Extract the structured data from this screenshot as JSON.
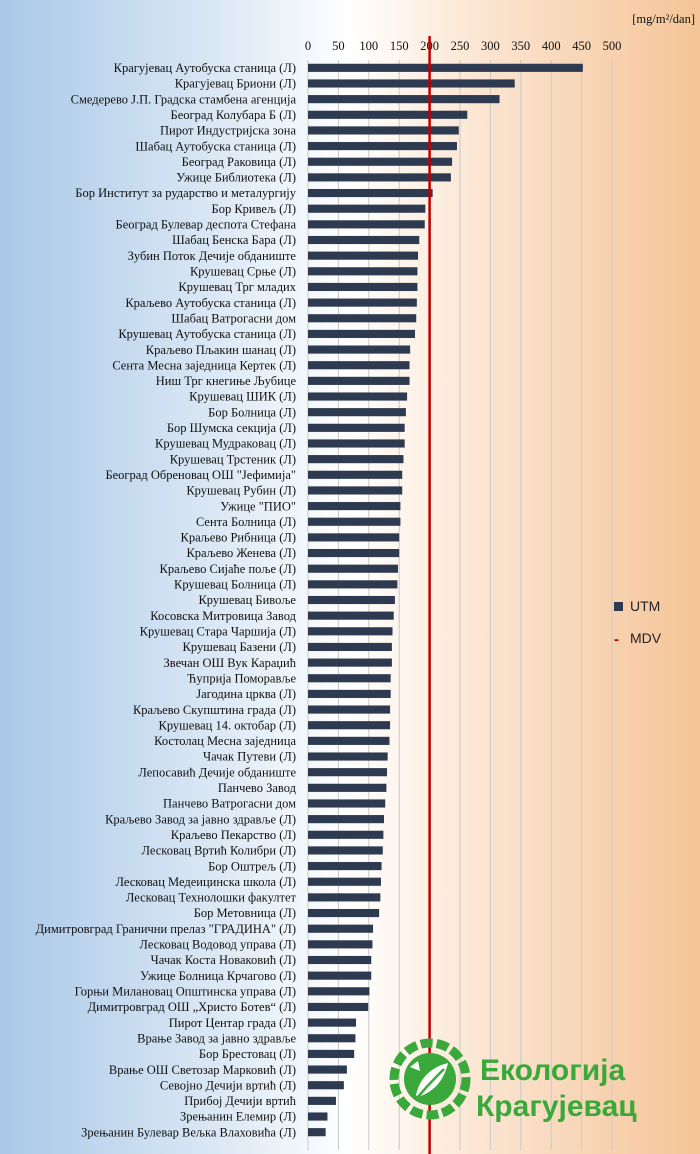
{
  "chart_data": {
    "type": "bar",
    "orientation": "horizontal",
    "unit_label": "[mg/m²/dan]",
    "xlim": [
      0,
      500
    ],
    "x_ticks": [
      0,
      50,
      100,
      150,
      200,
      250,
      300,
      350,
      400,
      450,
      500
    ],
    "reference_line": {
      "name": "MDV",
      "value": 200,
      "color": "#c00000"
    },
    "series": [
      {
        "name": "UTM",
        "color": "#2e3a4f"
      }
    ],
    "legend_position": "right",
    "categories": [
      "Крагујевац Аутобуска станица (Л)",
      "Крагујевац Бриони (Л)",
      "Смедерево Ј.П. Градска стамбена агенција",
      "Београд Колубара Б (Л)",
      "Пирот Индустријска зона",
      "Шабац Аутобуска станица (Л)",
      "Београд Раковица (Л)",
      "Ужице Библиотека (Л)",
      "Бор Институт за рударство и металургију",
      "Бор Кривељ (Л)",
      "Београд Булевар деспота Стефана",
      "Шабац Бенска Бара (Л)",
      "Зубин Поток Дечије обданиште",
      "Крушевац Срње (Л)",
      "Крушевац Трг младих",
      "Краљево Аутобуска станица (Л)",
      "Шабац Ватрогасни дом",
      "Крушевац Аутобуска станица (Л)",
      "Краљево Пљакин шанац (Л)",
      "Сента Месна заједница Кертек (Л)",
      "Ниш Трг кнегиње Љубице",
      "Крушевац ШИК (Л)",
      "Бор Болница (Л)",
      "Бор Шумска секција (Л)",
      "Крушевац Мудраковац (Л)",
      "Крушевац Трстеник (Л)",
      "Београд Обреновац ОШ \"Јефимија\"",
      "Крушевац Рубин (Л)",
      "Ужице \"ПИО\"",
      "Сента Болница (Л)",
      "Краљево Рибница (Л)",
      "Краљево Женева (Л)",
      "Краљево Сијаће поље (Л)",
      "Крушевац Болница (Л)",
      "Крушевац Бивоље",
      "Косовска Митровица Завод",
      "Крушевац Стара Чаршија (Л)",
      "Крушевац Базени (Л)",
      "Звечан ОШ Вук Караџић",
      "Ћуприја Поморавље",
      "Јагодина црква (Л)",
      "Краљево Скупштина града (Л)",
      "Крушевац 14. октобар (Л)",
      "Костолац Месна заједница",
      "Чачак Путеви (Л)",
      "Лепосавић Дечије обданиште",
      "Панчево Завод",
      "Панчево Ватрогасни дом",
      "Краљево Завод за јавно здравље (Л)",
      "Краљево Пекарство (Л)",
      "Лесковац Вртић Колибри (Л)",
      "Бор Оштрељ (Л)",
      "Лесковац Медеицинска школа (Л)",
      "Лесковац Технолошки факултет",
      "Бор Метовница (Л)",
      "Димитровград Гранични прелаз \"ГРАДИНА\" (Л)",
      "Лесковац Водовод управа (Л)",
      "Чачак Коста Новаковић (Л)",
      "Ужице Болница Крчагово (Л)",
      "Горњи Милановац Општинска управа (Л)",
      "Димитровград ОШ „Христо Ботев“ (Л)",
      "Пирот Центар града (Л)",
      "Врање Завод за јавно здравље",
      "Бор Брестовац (Л)",
      "Врање ОШ Светозар Марковић (Л)",
      "Севојно Дечији вртић (Л)",
      "Прибој Дечији вртић",
      "Зрењанин Елемир (Л)",
      "Зрењанин Булевар Вељка Влаховића (Л)"
    ],
    "values": [
      452,
      340,
      315,
      262,
      248,
      245,
      237,
      235,
      205,
      193,
      192,
      183,
      181,
      180,
      180,
      179,
      178,
      176,
      168,
      167,
      167,
      163,
      161,
      159,
      159,
      157,
      155,
      155,
      152,
      152,
      150,
      150,
      148,
      147,
      143,
      141,
      139,
      138,
      138,
      136,
      136,
      135,
      135,
      134,
      131,
      130,
      129,
      127,
      125,
      124,
      123,
      121,
      120,
      119,
      117,
      107,
      106,
      104,
      104,
      101,
      99,
      79,
      78,
      76,
      64,
      59,
      46,
      32,
      29
    ]
  },
  "logo": {
    "line1": "Екологија",
    "line2": "Крагујевац",
    "colors": {
      "green": "#3aa83a",
      "dark_green": "#2d8a2d"
    }
  }
}
